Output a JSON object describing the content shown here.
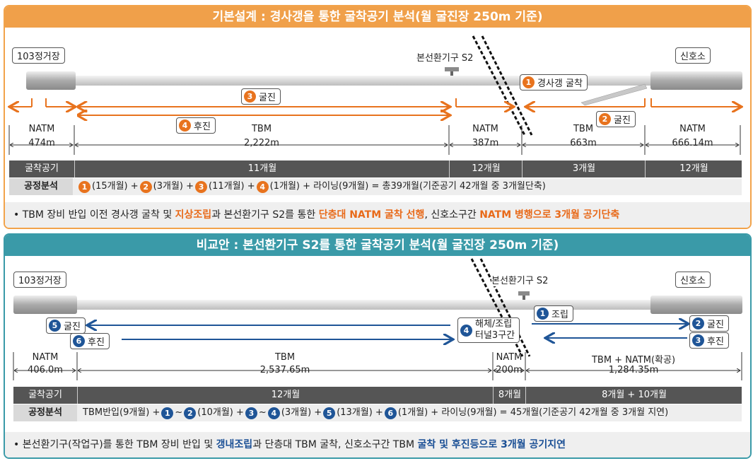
{
  "panel1": {
    "title": "기본설계 : 경사갱을 통한 굴착공기 분석(월 굴진장 250m 기준)",
    "station_left": "103정거장",
    "shaft": "본선환기구 S2",
    "station_right": "신호소",
    "tag1": {
      "num": "1",
      "text": "경사갱 굴착"
    },
    "tag2": {
      "num": "2",
      "text": "굴진"
    },
    "tag3": {
      "num": "3",
      "text": "굴진"
    },
    "tag4": {
      "num": "4",
      "text": "후진"
    },
    "segments": [
      {
        "method": "NATM",
        "length": "474m"
      },
      {
        "method": "TBM",
        "length": "2,222m"
      },
      {
        "method": "NATM",
        "length": "387m"
      },
      {
        "method": "TBM",
        "length": "663m"
      },
      {
        "method": "NATM",
        "length": "666.14m"
      }
    ],
    "bar_label": "굴착공기",
    "bar_cells": [
      "11개월",
      "12개월",
      "3개월",
      "12개월"
    ],
    "proc_label": "공정분석",
    "proc_parts": [
      "(15개월) +",
      "(3개월) +",
      "(11개월) +",
      "(1개월) + 라이닝(9개월) = 총39개월(기준공기 42개월 중 3개월단축)"
    ],
    "proc_nums": [
      "1",
      "2",
      "3",
      "4"
    ],
    "foot_a": "• TBM 장비 반입 이전 경사갱 굴착 및 ",
    "foot_b": "지상조립",
    "foot_c": "과 본선환기구 S2를 통한 ",
    "foot_d": "단층대 NATM 굴착 선행",
    "foot_e": ", 신호소구간 ",
    "foot_f": "NATM 병행으로 3개월 공기단축"
  },
  "panel2": {
    "title": "비교안 : 본선환기구 S2를 통한 굴착공기 분석(월 굴진장 250m 기준)",
    "station_left": "103정거장",
    "shaft": "본선환기구 S2",
    "station_right": "신호소",
    "tag1": {
      "num": "1",
      "text": "조립"
    },
    "tag2": {
      "num": "2",
      "text": "굴진"
    },
    "tag3": {
      "num": "3",
      "text": "후진"
    },
    "tag4": {
      "num": "4",
      "line1": "해체/조립",
      "line2": "터널3구간"
    },
    "tag5": {
      "num": "5",
      "text": "굴진"
    },
    "tag6": {
      "num": "6",
      "text": "후진"
    },
    "segments": [
      {
        "method": "NATM",
        "length": "406.0m"
      },
      {
        "method": "TBM",
        "length": "2,537.65m"
      },
      {
        "method": "NATM",
        "length": "200m"
      },
      {
        "method": "TBM + NATM(확공)",
        "length": "1,284.35m"
      }
    ],
    "bar_label": "굴착공기",
    "bar_cells": [
      "12개월",
      "8개월",
      "8개월 + 10개월"
    ],
    "proc_label": "공정분석",
    "proc_prefix": "TBM반입(9개월) +",
    "proc_nums": [
      "1",
      "2",
      "3",
      "4",
      "5",
      "6"
    ],
    "proc_parts": [
      "~",
      "(10개월) +",
      "~",
      "(3개월) +",
      "(13개월) +",
      "(1개월) + 라이닝(9개월) = 45개월(기준공기 42개월 중 3개월 지연)"
    ],
    "foot_a": "• 본선환기구(작업구)를 통한 TBM 장비 반입 및 ",
    "foot_b": "갱내조립",
    "foot_c": "과 단층대 TBM 굴착, 신호소구간 TBM ",
    "foot_d": "굴착 및 후진등으로 3개월 공기지연"
  },
  "colors": {
    "orange": "#e8731e",
    "blue": "#1f5597",
    "teal": "#3a9aa8"
  }
}
